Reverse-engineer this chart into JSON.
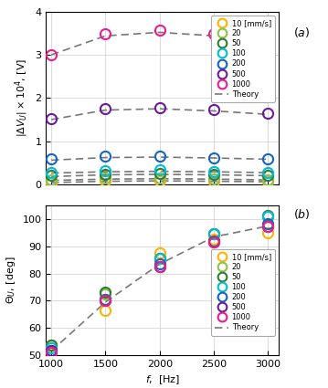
{
  "freq": [
    1000,
    1500,
    2000,
    2500,
    3000
  ],
  "panel_a": {
    "ylabel": "$|\\Delta V_U| \\times 10^4$, [V]",
    "ylim": [
      0,
      4
    ],
    "yticks": [
      0,
      1,
      2,
      3,
      4
    ],
    "series": {
      "10": [
        0.05,
        0.08,
        0.09,
        0.07,
        0.06
      ],
      "20": [
        0.1,
        0.14,
        0.15,
        0.12,
        0.11
      ],
      "50": [
        0.2,
        0.24,
        0.26,
        0.23,
        0.21
      ],
      "100": [
        0.28,
        0.32,
        0.33,
        0.3,
        0.28
      ],
      "200": [
        0.58,
        0.65,
        0.65,
        0.62,
        0.6
      ],
      "500": [
        1.52,
        1.75,
        1.78,
        1.73,
        1.65
      ],
      "1000": [
        3.0,
        3.48,
        3.58,
        3.48,
        3.3
      ]
    },
    "theory": {
      "10": [
        0.04,
        0.07,
        0.08,
        0.07,
        0.06
      ],
      "20": [
        0.09,
        0.12,
        0.13,
        0.12,
        0.1
      ],
      "50": [
        0.18,
        0.22,
        0.23,
        0.22,
        0.2
      ],
      "100": [
        0.26,
        0.29,
        0.3,
        0.29,
        0.27
      ],
      "200": [
        0.56,
        0.62,
        0.63,
        0.61,
        0.58
      ],
      "500": [
        1.5,
        1.72,
        1.75,
        1.7,
        1.62
      ],
      "1000": [
        3.0,
        3.44,
        3.52,
        3.44,
        3.28
      ]
    }
  },
  "panel_b": {
    "ylabel": "$\\Theta_U$, [deg]",
    "ylim": [
      50,
      105
    ],
    "yticks": [
      50,
      60,
      70,
      80,
      90,
      100
    ],
    "series": {
      "10": [
        53.5,
        66.5,
        87.5,
        92.5,
        95.0
      ],
      "20": [
        53.5,
        72.5,
        85.5,
        94.5,
        101.0
      ],
      "50": [
        53.5,
        73.0,
        85.5,
        94.5,
        101.5
      ],
      "100": [
        52.5,
        70.5,
        85.5,
        94.5,
        101.0
      ],
      "200": [
        51.5,
        70.5,
        83.5,
        92.0,
        98.5
      ],
      "500": [
        51.5,
        70.0,
        82.5,
        91.5,
        97.5
      ],
      "1000": [
        51.0,
        70.0,
        82.5,
        91.5,
        97.5
      ]
    },
    "theory": [
      51.5,
      69.5,
      83.5,
      93.5,
      97.5
    ]
  },
  "colors": {
    "10": "#FFB300",
    "20": "#8BC34A",
    "50": "#2E7D32",
    "100": "#00BCD4",
    "200": "#1565C0",
    "500": "#6A1B9A",
    "1000": "#E91E8C"
  },
  "labels": [
    "10 [mm/s]",
    "20",
    "50",
    "100",
    "200",
    "500",
    "1000"
  ],
  "keys": [
    "10",
    "20",
    "50",
    "100",
    "200",
    "500",
    "1000"
  ],
  "xlabel": "$f$,  [Hz]",
  "xlim": [
    950,
    3100
  ],
  "xticks": [
    1000,
    1500,
    2000,
    2500,
    3000
  ],
  "theory_color": "#777777",
  "theory_label": "Theory",
  "bg_color": "#ffffff",
  "grid_color": "#cccccc",
  "marker_size": 8,
  "marker_edge_width": 1.5,
  "theory_lw": 1.2,
  "legend_a_loc": "upper right",
  "legend_b_loc": "center right"
}
